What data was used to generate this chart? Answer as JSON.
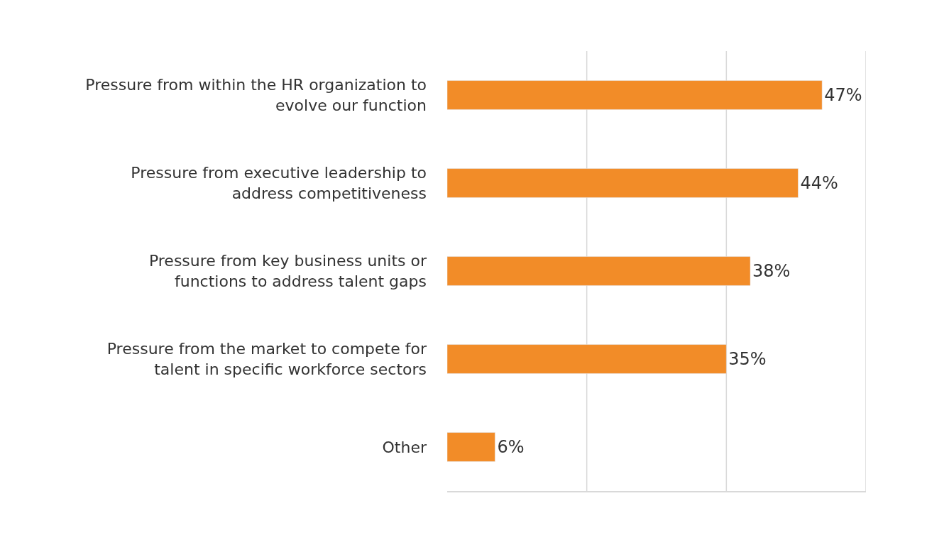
{
  "chart_data": {
    "type": "bar",
    "orientation": "horizontal",
    "categories": [
      "Pressure from within the HR organization to evolve our function",
      "Pressure from executive leadership to address competitiveness",
      "Pressure from key business units or functions to address talent gaps",
      "Pressure from the market to compete for talent in specific workforce sectors",
      "Other"
    ],
    "values": [
      47,
      44,
      38,
      35,
      6
    ],
    "value_labels": [
      "47%",
      "44%",
      "38%",
      "35%",
      "6%"
    ],
    "color": "#f28c28",
    "xlim": [
      0,
      52.5
    ],
    "ref_lines": [
      {
        "axis": "x",
        "value": 17.5,
        "color": "#d9d9d9",
        "line_style": "solid"
      },
      {
        "axis": "x",
        "value": 35,
        "color": "#d9d9d9",
        "line_style": "solid"
      },
      {
        "axis": "x",
        "value": 52.5,
        "color": "#d9d9d9",
        "line_style": "solid"
      }
    ],
    "tick_labels": "y",
    "legend": false
  }
}
